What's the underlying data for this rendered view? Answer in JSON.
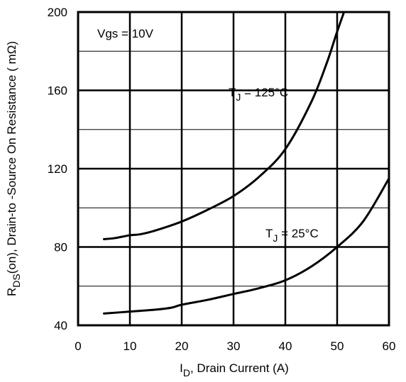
{
  "chart_data": {
    "type": "line",
    "xlabel": {
      "main": "I",
      "sub": "D",
      "rest": ", Drain Current (A)"
    },
    "ylabel": {
      "main": "R",
      "sub": "DS",
      "rest": "(on),  Drain-to -Source On Resistance ( mΩ)"
    },
    "xlim": [
      0,
      60
    ],
    "ylim": [
      40,
      200
    ],
    "x_ticks": [
      0,
      10,
      20,
      30,
      40,
      50,
      60
    ],
    "y_ticks": [
      40,
      80,
      120,
      160,
      200
    ],
    "grid": true,
    "annotations": {
      "condition": "Vgs = 10V",
      "series_labels": [
        {
          "main": "T",
          "sub": "J",
          "rest": " = 125°C"
        },
        {
          "main": "T",
          "sub": "J",
          "rest": " = 25°C"
        }
      ]
    },
    "series": [
      {
        "x": [
          5,
          7,
          10,
          12,
          15,
          20,
          25,
          30,
          35,
          40,
          45,
          48,
          50,
          52
        ],
        "values": [
          84,
          84.5,
          86,
          86.5,
          88.5,
          93,
          99,
          106,
          116,
          130,
          154,
          174,
          190,
          205
        ]
      },
      {
        "x": [
          5,
          10,
          15,
          18,
          20,
          25,
          30,
          35,
          40,
          45,
          50,
          55,
          60
        ],
        "values": [
          46,
          47,
          48,
          49,
          50.5,
          53,
          56,
          59,
          63,
          70,
          80,
          93,
          115
        ]
      }
    ]
  }
}
